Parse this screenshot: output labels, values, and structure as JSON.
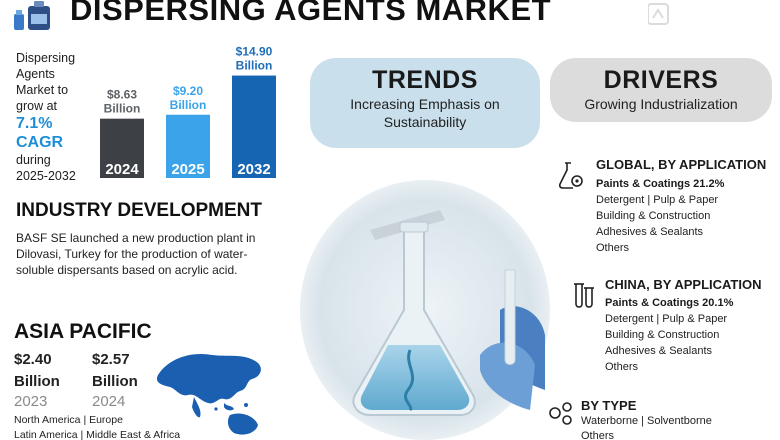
{
  "header": {
    "title": "DISPERSING AGENTS MARKET"
  },
  "growth": {
    "line1": "Dispersing Agents",
    "line2": "Market to",
    "line3": "grow at",
    "rate": "7.1%",
    "cagr": "CAGR",
    "line4": "during",
    "period": "2025-2032"
  },
  "chart_data": {
    "type": "bar",
    "categories": [
      "2024",
      "2025",
      "2032"
    ],
    "values": [
      8.63,
      9.2,
      14.9
    ],
    "value_labels": [
      "$8.63\nBillion",
      "$9.20\nBillion",
      "$14.90\nBillion"
    ],
    "value_labels_line1": [
      "$8.63",
      "$9.20",
      "$14.90"
    ],
    "value_labels_line2": [
      "Billion",
      "Billion",
      "Billion"
    ],
    "colors": [
      "#3d4145",
      "#3aa3ea",
      "#1565b3"
    ],
    "label_colors": [
      "#5e6266",
      "#3aa3ea",
      "#1e6fb8"
    ],
    "ylim": [
      0,
      16
    ],
    "grid": false,
    "title": "",
    "xlabel": "",
    "ylabel": ""
  },
  "industry": {
    "title": "INDUSTRY DEVELOPMENT",
    "text": "BASF SE launched a new production plant in Dilovasi, Turkey for the production of water-soluble dispersants based on acrylic acid."
  },
  "asia_pacific": {
    "title": "ASIA PACIFIC",
    "value_2023": "$2.40",
    "unit_2023": "Billion",
    "year_2023": "2023",
    "value_2024": "$2.57",
    "unit_2024": "Billion",
    "year_2024": "2024",
    "regions_line1": "North America  |  Europe",
    "regions_line2": "Latin America  |  Middle East & Africa"
  },
  "trends": {
    "title": "TRENDS",
    "line1": "Increasing Emphasis on",
    "line2": "Sustainability"
  },
  "drivers": {
    "title": "DRIVERS",
    "line1": "Growing Industrialization"
  },
  "global_application": {
    "title": "GLOBAL, BY APPLICATION",
    "top": "Paints & Coatings 21.2%",
    "items": [
      "Detergent  |  Pulp & Paper",
      "Building & Construction",
      "Adhesives & Sealants",
      "Others"
    ]
  },
  "china_application": {
    "title": "CHINA, BY APPLICATION",
    "top": "Paints & Coatings 20.1%",
    "items": [
      "Detergent  |  Pulp & Paper",
      "Building & Construction",
      "Adhesives & Sealants",
      "Others"
    ]
  },
  "by_type": {
    "title": "BY TYPE",
    "line1": "Waterborne  |  Solventborne",
    "line2": "Others"
  },
  "colors": {
    "accent_blue": "#1e8fd6",
    "trends_bg": "#c9dfeb",
    "drivers_bg": "#dcdcdc"
  }
}
